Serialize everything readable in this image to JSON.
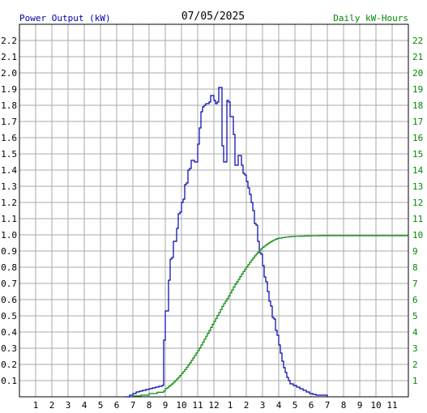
{
  "chart_data": {
    "type": "line",
    "date": "07/05/2025",
    "left_axis_label": "Power Output (kW)",
    "right_axis_label": "Daily kW-Hours",
    "xlim": [
      0,
      24
    ],
    "ylim_left": [
      0,
      2.3
    ],
    "ylim_right": [
      0,
      23
    ],
    "x_tick_labels": [
      "1",
      "2",
      "3",
      "4",
      "5",
      "6",
      "7",
      "8",
      "9",
      "10",
      "11",
      "12",
      "1",
      "2",
      "3",
      "4",
      "5",
      "6",
      "7",
      "8",
      "9",
      "10",
      "11"
    ],
    "y_left_ticks": [
      "0.1",
      "0.2",
      "0.3",
      "0.4",
      "0.5",
      "0.6",
      "0.7",
      "0.8",
      "0.9",
      "1.0",
      "1.1",
      "1.2",
      "1.3",
      "1.4",
      "1.5",
      "1.6",
      "1.7",
      "1.8",
      "1.9",
      "2.0",
      "2.1",
      "2.2"
    ],
    "y_right_ticks": [
      "1",
      "2",
      "3",
      "4",
      "5",
      "6",
      "7",
      "8",
      "9",
      "10",
      "11",
      "12",
      "13",
      "14",
      "15",
      "16",
      "17",
      "18",
      "19",
      "20",
      "21",
      "22"
    ],
    "grid": true,
    "colors": {
      "power": "#0000aa",
      "energy": "#008800",
      "grid": "#aaaaaa"
    },
    "series": [
      {
        "name": "Power Output (kW)",
        "axis": "left",
        "step": true,
        "points": [
          [
            6.5,
            0.0
          ],
          [
            6.8,
            0.01
          ],
          [
            7.0,
            0.02
          ],
          [
            7.2,
            0.03
          ],
          [
            7.4,
            0.035
          ],
          [
            7.6,
            0.04
          ],
          [
            7.8,
            0.045
          ],
          [
            8.0,
            0.05
          ],
          [
            8.2,
            0.055
          ],
          [
            8.4,
            0.06
          ],
          [
            8.6,
            0.065
          ],
          [
            8.8,
            0.07
          ],
          [
            8.9,
            0.35
          ],
          [
            9.0,
            0.53
          ],
          [
            9.1,
            0.53
          ],
          [
            9.2,
            0.72
          ],
          [
            9.3,
            0.85
          ],
          [
            9.4,
            0.86
          ],
          [
            9.5,
            0.96
          ],
          [
            9.6,
            0.96
          ],
          [
            9.7,
            1.04
          ],
          [
            9.8,
            1.13
          ],
          [
            9.9,
            1.14
          ],
          [
            10.0,
            1.2
          ],
          [
            10.1,
            1.22
          ],
          [
            10.2,
            1.31
          ],
          [
            10.3,
            1.32
          ],
          [
            10.4,
            1.4
          ],
          [
            10.5,
            1.41
          ],
          [
            10.6,
            1.46
          ],
          [
            10.7,
            1.46
          ],
          [
            10.8,
            1.45
          ],
          [
            10.9,
            1.45
          ],
          [
            11.0,
            1.56
          ],
          [
            11.1,
            1.66
          ],
          [
            11.2,
            1.76
          ],
          [
            11.3,
            1.79
          ],
          [
            11.4,
            1.8
          ],
          [
            11.5,
            1.81
          ],
          [
            11.6,
            1.81
          ],
          [
            11.7,
            1.82
          ],
          [
            11.8,
            1.86
          ],
          [
            11.9,
            1.86
          ],
          [
            12.0,
            1.83
          ],
          [
            12.1,
            1.81
          ],
          [
            12.2,
            1.82
          ],
          [
            12.3,
            1.91
          ],
          [
            12.4,
            1.91
          ],
          [
            12.5,
            1.55
          ],
          [
            12.6,
            1.45
          ],
          [
            12.7,
            1.45
          ],
          [
            12.8,
            1.83
          ],
          [
            12.9,
            1.82
          ],
          [
            13.0,
            1.73
          ],
          [
            13.1,
            1.73
          ],
          [
            13.2,
            1.62
          ],
          [
            13.3,
            1.43
          ],
          [
            13.4,
            1.43
          ],
          [
            13.5,
            1.49
          ],
          [
            13.6,
            1.49
          ],
          [
            13.7,
            1.43
          ],
          [
            13.8,
            1.38
          ],
          [
            13.9,
            1.37
          ],
          [
            14.0,
            1.33
          ],
          [
            14.1,
            1.29
          ],
          [
            14.2,
            1.25
          ],
          [
            14.3,
            1.2
          ],
          [
            14.4,
            1.15
          ],
          [
            14.5,
            1.07
          ],
          [
            14.6,
            1.06
          ],
          [
            14.7,
            0.96
          ],
          [
            14.8,
            0.89
          ],
          [
            14.9,
            0.88
          ],
          [
            15.0,
            0.81
          ],
          [
            15.1,
            0.74
          ],
          [
            15.2,
            0.71
          ],
          [
            15.3,
            0.65
          ],
          [
            15.4,
            0.59
          ],
          [
            15.5,
            0.56
          ],
          [
            15.6,
            0.49
          ],
          [
            15.7,
            0.48
          ],
          [
            15.8,
            0.41
          ],
          [
            15.9,
            0.38
          ],
          [
            16.0,
            0.32
          ],
          [
            16.1,
            0.27
          ],
          [
            16.2,
            0.22
          ],
          [
            16.3,
            0.18
          ],
          [
            16.4,
            0.15
          ],
          [
            16.5,
            0.12
          ],
          [
            16.6,
            0.1
          ],
          [
            16.7,
            0.08
          ],
          [
            16.9,
            0.07
          ],
          [
            17.1,
            0.06
          ],
          [
            17.3,
            0.05
          ],
          [
            17.5,
            0.04
          ],
          [
            17.7,
            0.03
          ],
          [
            17.9,
            0.02
          ],
          [
            18.1,
            0.015
          ],
          [
            18.3,
            0.01
          ],
          [
            18.6,
            0.01
          ],
          [
            19.0,
            0.0
          ]
        ]
      },
      {
        "name": "Daily kW-Hours",
        "axis": "right",
        "step": true,
        "points": [
          [
            7.0,
            0.05
          ],
          [
            7.5,
            0.1
          ],
          [
            8.0,
            0.2
          ],
          [
            8.5,
            0.28
          ],
          [
            8.9,
            0.36
          ],
          [
            9.0,
            0.5
          ],
          [
            9.1,
            0.55
          ],
          [
            9.2,
            0.65
          ],
          [
            9.3,
            0.72
          ],
          [
            9.4,
            0.8
          ],
          [
            9.5,
            0.9
          ],
          [
            9.6,
            1.0
          ],
          [
            9.7,
            1.1
          ],
          [
            9.8,
            1.2
          ],
          [
            9.9,
            1.32
          ],
          [
            10.0,
            1.44
          ],
          [
            10.1,
            1.56
          ],
          [
            10.2,
            1.68
          ],
          [
            10.3,
            1.82
          ],
          [
            10.4,
            1.96
          ],
          [
            10.5,
            2.1
          ],
          [
            10.6,
            2.25
          ],
          [
            10.7,
            2.4
          ],
          [
            10.8,
            2.55
          ],
          [
            10.9,
            2.7
          ],
          [
            11.0,
            2.85
          ],
          [
            11.1,
            3.02
          ],
          [
            11.2,
            3.2
          ],
          [
            11.3,
            3.38
          ],
          [
            11.4,
            3.56
          ],
          [
            11.5,
            3.74
          ],
          [
            11.6,
            3.92
          ],
          [
            11.7,
            4.1
          ],
          [
            11.8,
            4.28
          ],
          [
            11.9,
            4.47
          ],
          [
            12.0,
            4.65
          ],
          [
            12.1,
            4.83
          ],
          [
            12.2,
            5.02
          ],
          [
            12.3,
            5.2
          ],
          [
            12.4,
            5.39
          ],
          [
            12.5,
            5.58
          ],
          [
            12.6,
            5.75
          ],
          [
            12.7,
            5.9
          ],
          [
            12.8,
            6.06
          ],
          [
            12.9,
            6.23
          ],
          [
            13.0,
            6.42
          ],
          [
            13.1,
            6.6
          ],
          [
            13.2,
            6.78
          ],
          [
            13.3,
            6.95
          ],
          [
            13.4,
            7.1
          ],
          [
            13.5,
            7.25
          ],
          [
            13.6,
            7.42
          ],
          [
            13.7,
            7.58
          ],
          [
            13.8,
            7.73
          ],
          [
            13.9,
            7.88
          ],
          [
            14.0,
            8.02
          ],
          [
            14.1,
            8.16
          ],
          [
            14.2,
            8.3
          ],
          [
            14.3,
            8.44
          ],
          [
            14.4,
            8.57
          ],
          [
            14.5,
            8.7
          ],
          [
            14.6,
            8.82
          ],
          [
            14.7,
            8.93
          ],
          [
            14.8,
            9.04
          ],
          [
            14.9,
            9.14
          ],
          [
            15.0,
            9.23
          ],
          [
            15.1,
            9.31
          ],
          [
            15.2,
            9.38
          ],
          [
            15.3,
            9.45
          ],
          [
            15.4,
            9.52
          ],
          [
            15.5,
            9.58
          ],
          [
            15.6,
            9.64
          ],
          [
            15.7,
            9.69
          ],
          [
            15.8,
            9.73
          ],
          [
            15.9,
            9.77
          ],
          [
            16.0,
            9.8
          ],
          [
            16.2,
            9.83
          ],
          [
            16.4,
            9.86
          ],
          [
            16.6,
            9.88
          ],
          [
            16.8,
            9.9
          ],
          [
            17.0,
            9.91
          ],
          [
            17.3,
            9.92
          ],
          [
            17.6,
            9.93
          ],
          [
            18.0,
            9.94
          ],
          [
            18.5,
            9.95
          ],
          [
            24.0,
            9.95
          ]
        ]
      }
    ]
  }
}
